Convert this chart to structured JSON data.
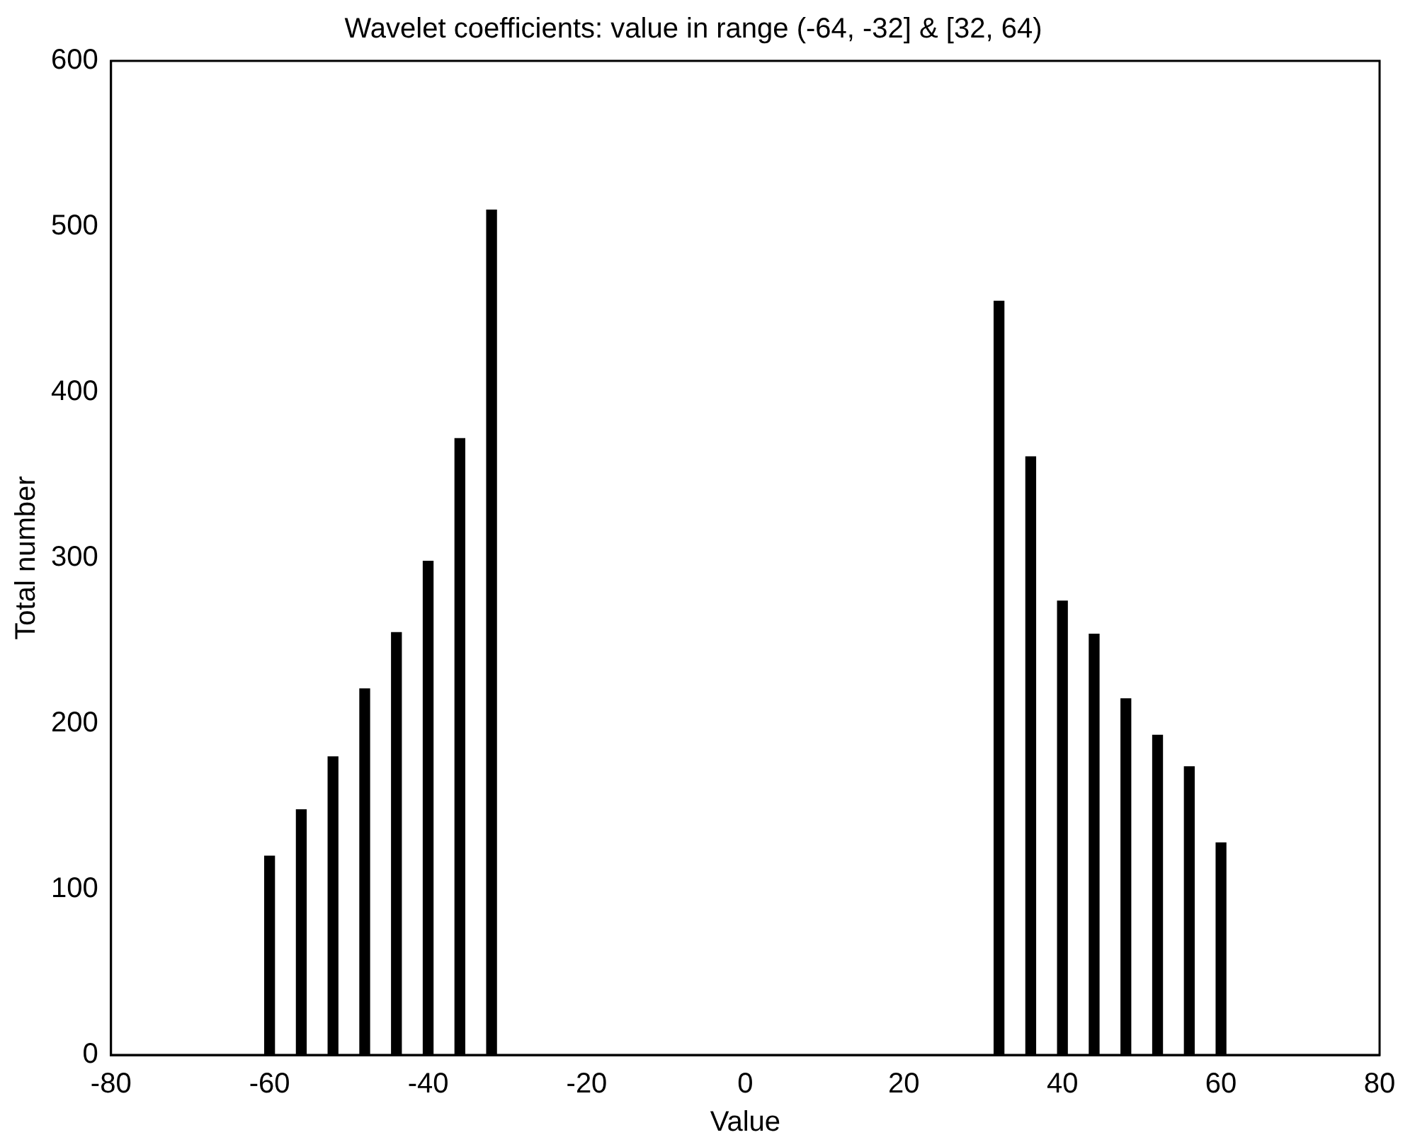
{
  "chart_data": {
    "type": "bar",
    "title": "Wavelet coefficients: value in range (-64, -32] & [32, 64)",
    "xlabel": "Value",
    "ylabel": "Total number",
    "x": [
      -60,
      -56,
      -52,
      -48,
      -44,
      -40,
      -36,
      -32,
      32,
      36,
      40,
      44,
      48,
      52,
      56,
      60
    ],
    "values": [
      120,
      148,
      180,
      221,
      255,
      298,
      372,
      510,
      455,
      361,
      274,
      254,
      215,
      193,
      174,
      128
    ],
    "color": "#000000",
    "xlim": [
      -80,
      80
    ],
    "xticks": [
      -80,
      -60,
      -40,
      -20,
      0,
      20,
      40,
      60,
      80
    ],
    "ylim": [
      0,
      600
    ],
    "yticks": [
      0,
      100,
      200,
      300,
      400,
      500,
      600
    ],
    "grid": false,
    "legend": false
  }
}
